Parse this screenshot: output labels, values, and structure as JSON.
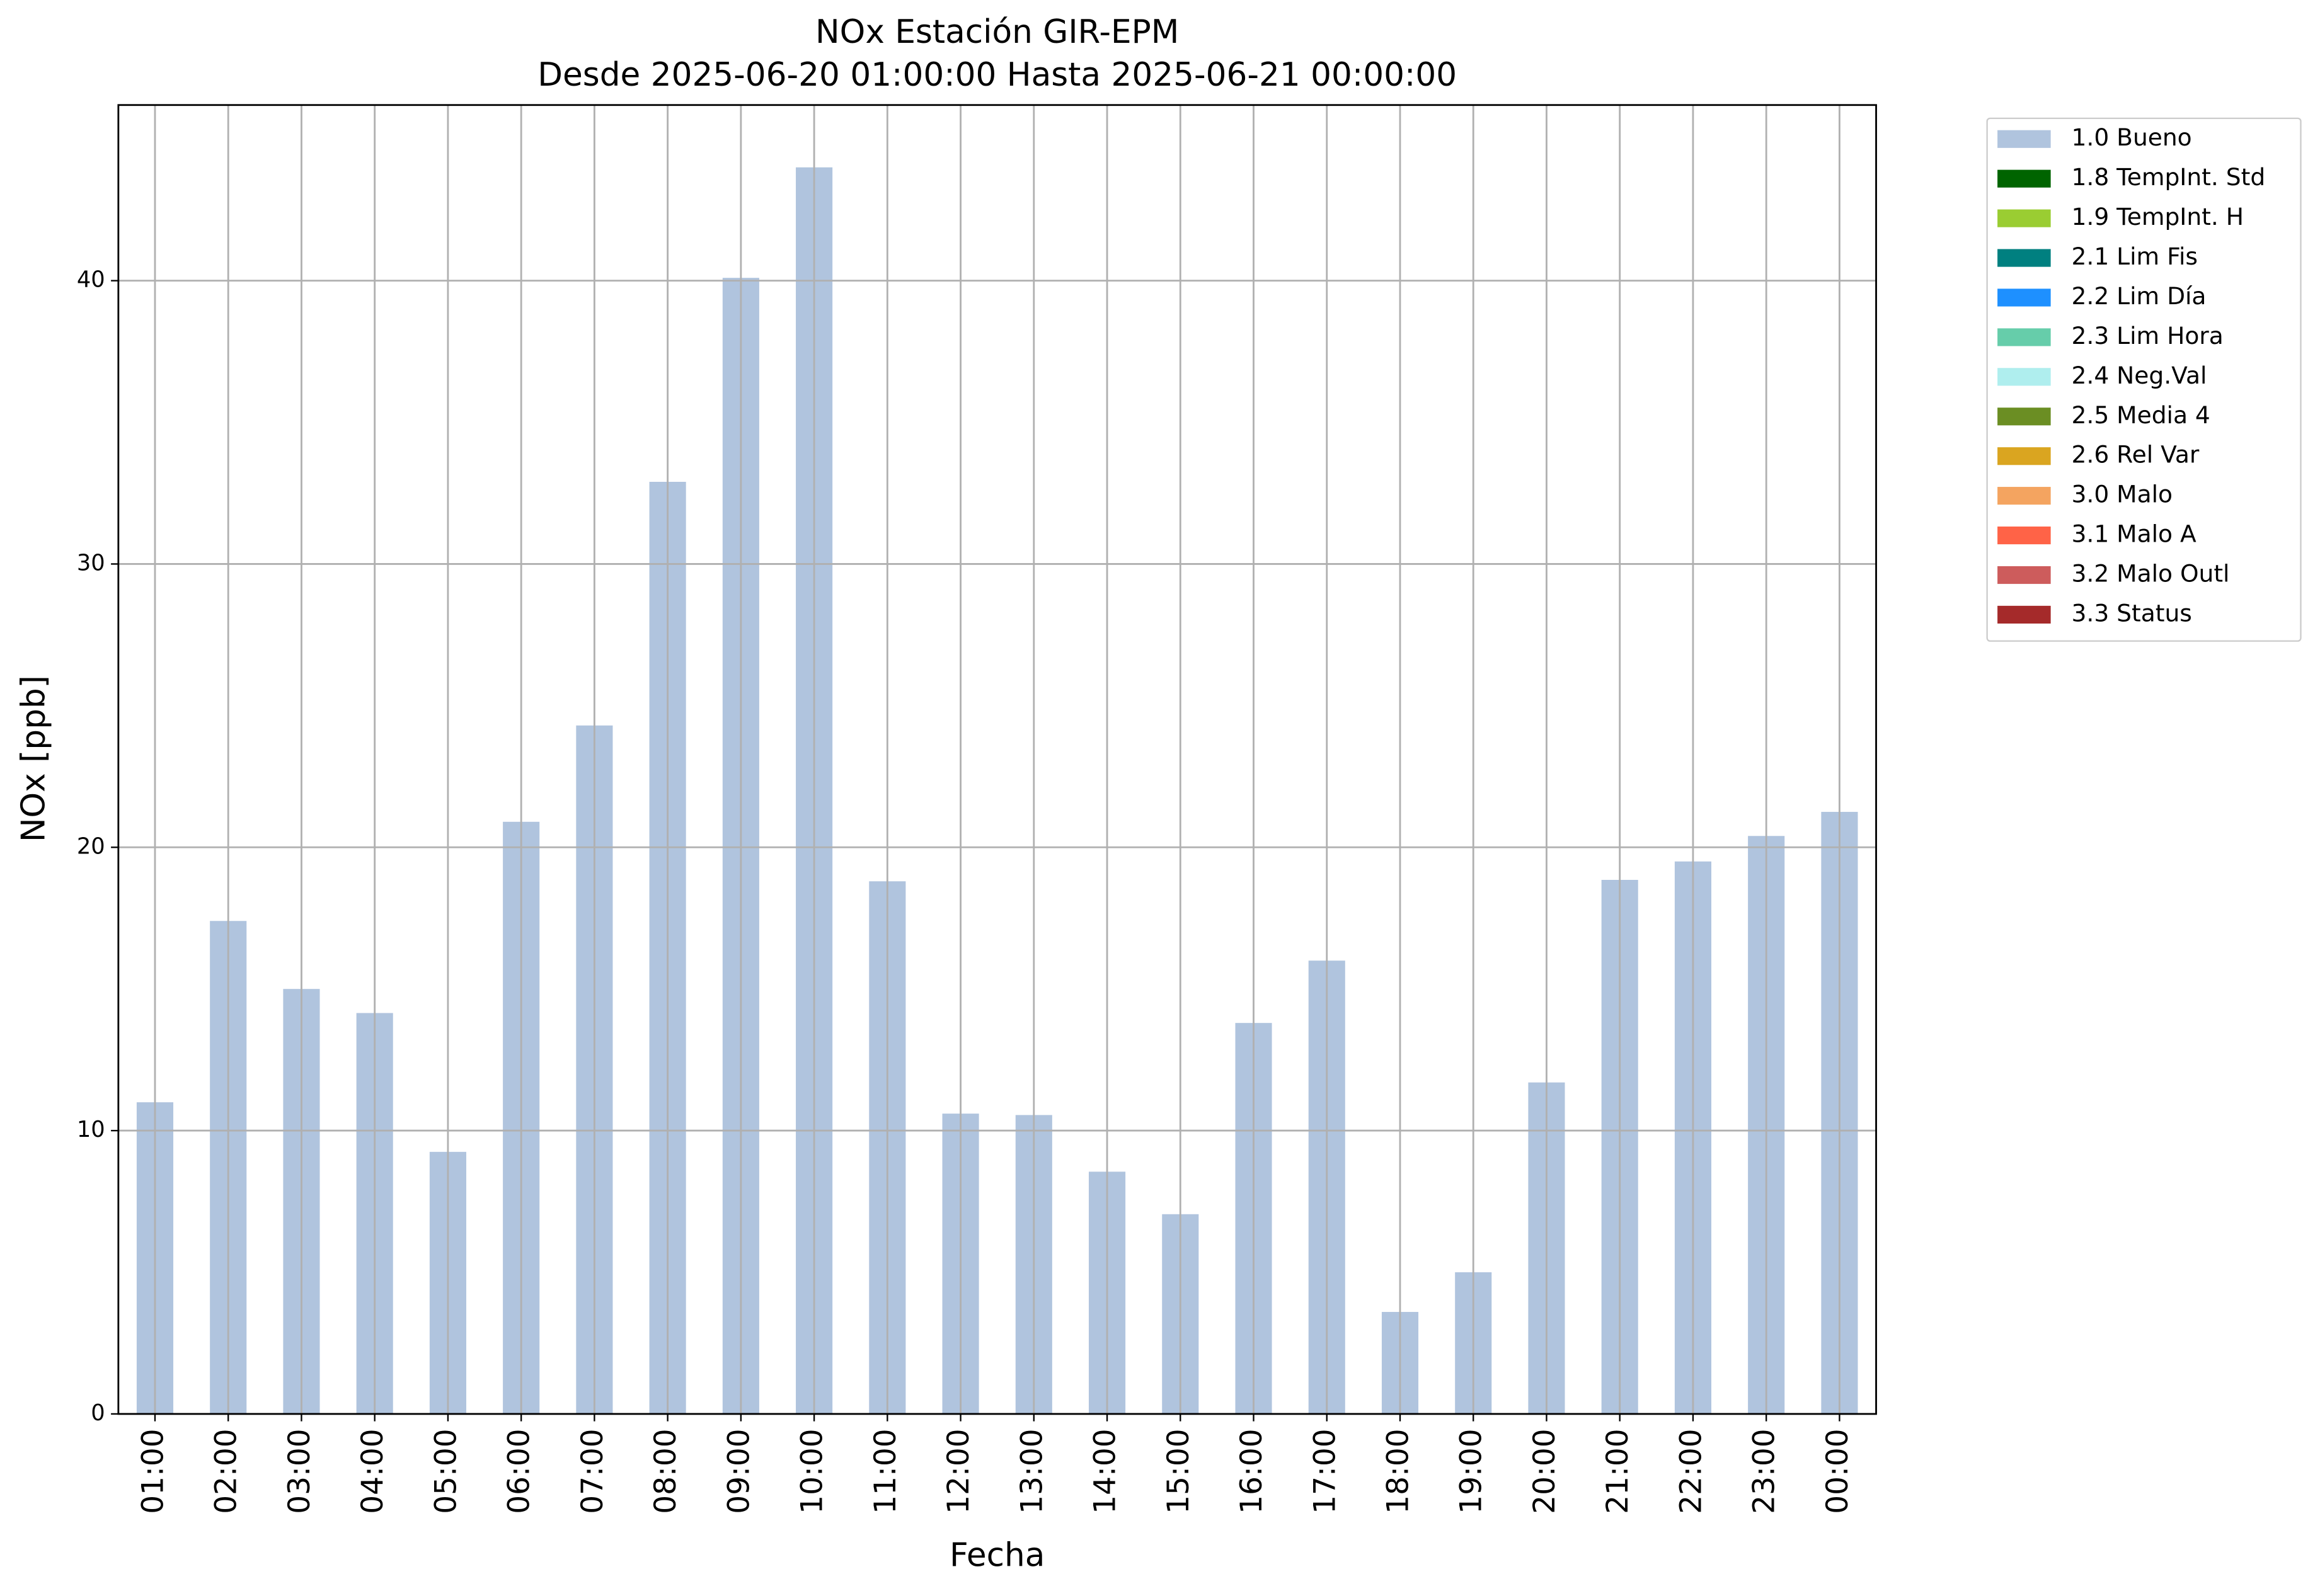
{
  "chart_data": {
    "type": "bar",
    "title": "NOx Estación GIR-EPM",
    "subtitle": "Desde 2025-06-20 01:00:00 Hasta 2025-06-21 00:00:00",
    "x_label": "Fecha",
    "y_label": "NOx [ppb]",
    "categories": [
      "01:00",
      "02:00",
      "03:00",
      "04:00",
      "05:00",
      "06:00",
      "07:00",
      "08:00",
      "09:00",
      "10:00",
      "11:00",
      "12:00",
      "13:00",
      "14:00",
      "15:00",
      "16:00",
      "17:00",
      "18:00",
      "19:00",
      "20:00",
      "21:00",
      "22:00",
      "23:00",
      "00:00"
    ],
    "series": [
      {
        "name": "1.0 Bueno",
        "color": "#b0c4de",
        "values": [
          11.0,
          17.4,
          15.0,
          14.15,
          9.25,
          20.9,
          24.3,
          32.9,
          40.1,
          44.0,
          18.8,
          10.6,
          10.55,
          8.55,
          7.05,
          13.8,
          16.0,
          3.6,
          5.0,
          11.7,
          18.85,
          19.5,
          20.4,
          21.25
        ]
      },
      {
        "name": "1.8 TempInt. Std",
        "color": "#006400"
      },
      {
        "name": "1.9 TempInt. H",
        "color": "#9acd32"
      },
      {
        "name": "2.1 Lim Fis",
        "color": "#008080"
      },
      {
        "name": "2.2 Lim Día",
        "color": "#1e90ff"
      },
      {
        "name": "2.3 Lim Hora",
        "color": "#66cdaa"
      },
      {
        "name": "2.4 Neg.Val",
        "color": "#afeeee"
      },
      {
        "name": "2.5 Media 4",
        "color": "#6b8e23"
      },
      {
        "name": "2.6 Rel Var",
        "color": "#daa520"
      },
      {
        "name": "3.0 Malo",
        "color": "#f4a460"
      },
      {
        "name": "3.1 Malo A",
        "color": "#ff6347"
      },
      {
        "name": "3.2 Malo Outl",
        "color": "#cd5c5c"
      },
      {
        "name": "3.3 Status",
        "color": "#a52a2a"
      }
    ],
    "ylim": [
      0,
      46.2
    ],
    "yticks": [
      0,
      10,
      20,
      30,
      40
    ],
    "grid": true,
    "legend": "outside right"
  }
}
